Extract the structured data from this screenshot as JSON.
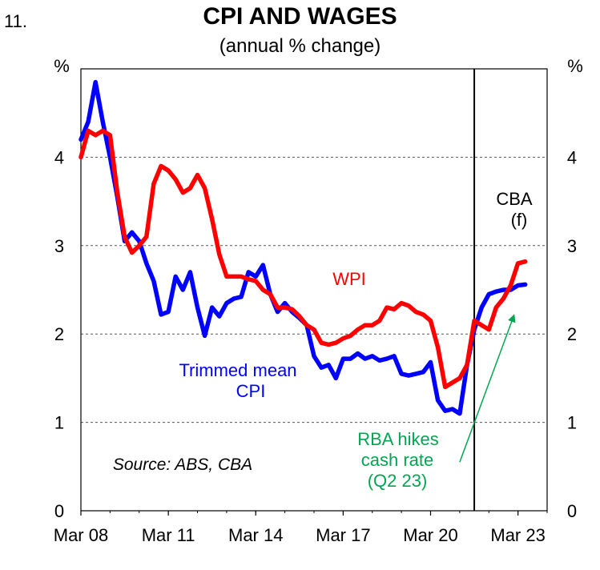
{
  "figure_number": "11.",
  "chart_data": {
    "type": "line",
    "title": "CPI AND WAGES",
    "subtitle": "(annual % change)",
    "ylabel_left": "%",
    "ylabel_right": "%",
    "ylim": [
      0,
      5
    ],
    "yticks": [
      0,
      1,
      2,
      3,
      4
    ],
    "xlim": [
      2008.0,
      2024.0
    ],
    "xticks": [
      {
        "label": "Mar 08",
        "value": 2008.0
      },
      {
        "label": "Mar 11",
        "value": 2011.0
      },
      {
        "label": "Mar 14",
        "value": 2014.0
      },
      {
        "label": "Mar 17",
        "value": 2017.0
      },
      {
        "label": "Mar 20",
        "value": 2020.0
      },
      {
        "label": "Mar 23",
        "value": 2023.0
      }
    ],
    "forecast_start": 2021.5,
    "forecast_label": [
      "CBA",
      "(f)"
    ],
    "source": "Source: ABS, CBA",
    "annotation": {
      "lines": [
        "RBA hikes",
        "cash rate",
        "(Q2 23)"
      ],
      "color": "#00a651",
      "arrow_from": [
        2021.0,
        0.55
      ],
      "arrow_to": [
        2022.85,
        2.2
      ]
    },
    "series": [
      {
        "name": "Trimmed mean CPI",
        "label_lines": [
          "Trimmed mean",
          "CPI"
        ],
        "color": "#0000ff",
        "x": [
          2008.0,
          2008.25,
          2008.5,
          2008.75,
          2009.0,
          2009.25,
          2009.5,
          2009.75,
          2010.0,
          2010.25,
          2010.5,
          2010.75,
          2011.0,
          2011.25,
          2011.5,
          2011.75,
          2012.0,
          2012.25,
          2012.5,
          2012.75,
          2013.0,
          2013.25,
          2013.5,
          2013.75,
          2014.0,
          2014.25,
          2014.5,
          2014.75,
          2015.0,
          2015.25,
          2015.5,
          2015.75,
          2016.0,
          2016.25,
          2016.5,
          2016.75,
          2017.0,
          2017.25,
          2017.5,
          2017.75,
          2018.0,
          2018.25,
          2018.5,
          2018.75,
          2019.0,
          2019.25,
          2019.5,
          2019.75,
          2020.0,
          2020.25,
          2020.5,
          2020.75,
          2021.0,
          2021.25,
          2021.5,
          2021.75,
          2022.0,
          2022.25,
          2022.5,
          2022.75,
          2023.0,
          2023.25
        ],
        "values": [
          4.2,
          4.4,
          4.85,
          4.4,
          4.0,
          3.55,
          3.05,
          3.15,
          3.05,
          2.8,
          2.6,
          2.22,
          2.25,
          2.65,
          2.5,
          2.7,
          2.3,
          1.98,
          2.3,
          2.2,
          2.35,
          2.4,
          2.42,
          2.7,
          2.65,
          2.78,
          2.45,
          2.25,
          2.35,
          2.25,
          2.18,
          2.1,
          1.75,
          1.62,
          1.65,
          1.5,
          1.72,
          1.72,
          1.78,
          1.72,
          1.75,
          1.7,
          1.72,
          1.75,
          1.55,
          1.53,
          1.55,
          1.57,
          1.68,
          1.25,
          1.13,
          1.15,
          1.1,
          1.65,
          2.05,
          2.3,
          2.45,
          2.48,
          2.5,
          2.5,
          2.55,
          2.56
        ]
      },
      {
        "name": "WPI",
        "label_lines": [
          "WPI"
        ],
        "color": "#ff0000",
        "x": [
          2008.0,
          2008.25,
          2008.5,
          2008.75,
          2009.0,
          2009.25,
          2009.5,
          2009.75,
          2010.0,
          2010.25,
          2010.5,
          2010.75,
          2011.0,
          2011.25,
          2011.5,
          2011.75,
          2012.0,
          2012.25,
          2012.5,
          2012.75,
          2013.0,
          2013.25,
          2013.5,
          2013.75,
          2014.0,
          2014.25,
          2014.5,
          2014.75,
          2015.0,
          2015.25,
          2015.5,
          2015.75,
          2016.0,
          2016.25,
          2016.5,
          2016.75,
          2017.0,
          2017.25,
          2017.5,
          2017.75,
          2018.0,
          2018.25,
          2018.5,
          2018.75,
          2019.0,
          2019.25,
          2019.5,
          2019.75,
          2020.0,
          2020.25,
          2020.5,
          2020.75,
          2021.0,
          2021.25,
          2021.5,
          2021.75,
          2022.0,
          2022.25,
          2022.5,
          2022.75,
          2023.0,
          2023.25
        ],
        "values": [
          4.0,
          4.3,
          4.25,
          4.3,
          4.25,
          3.6,
          3.1,
          2.92,
          3.0,
          3.1,
          3.7,
          3.9,
          3.85,
          3.75,
          3.6,
          3.65,
          3.8,
          3.65,
          3.3,
          2.9,
          2.65,
          2.65,
          2.65,
          2.62,
          2.6,
          2.5,
          2.45,
          2.3,
          2.3,
          2.28,
          2.2,
          2.1,
          2.05,
          1.9,
          1.88,
          1.9,
          1.95,
          1.98,
          2.05,
          2.1,
          2.1,
          2.15,
          2.3,
          2.28,
          2.35,
          2.32,
          2.25,
          2.22,
          2.15,
          1.85,
          1.4,
          1.45,
          1.5,
          1.65,
          2.15,
          2.1,
          2.05,
          2.3,
          2.4,
          2.55,
          2.8,
          2.82
        ]
      }
    ]
  }
}
